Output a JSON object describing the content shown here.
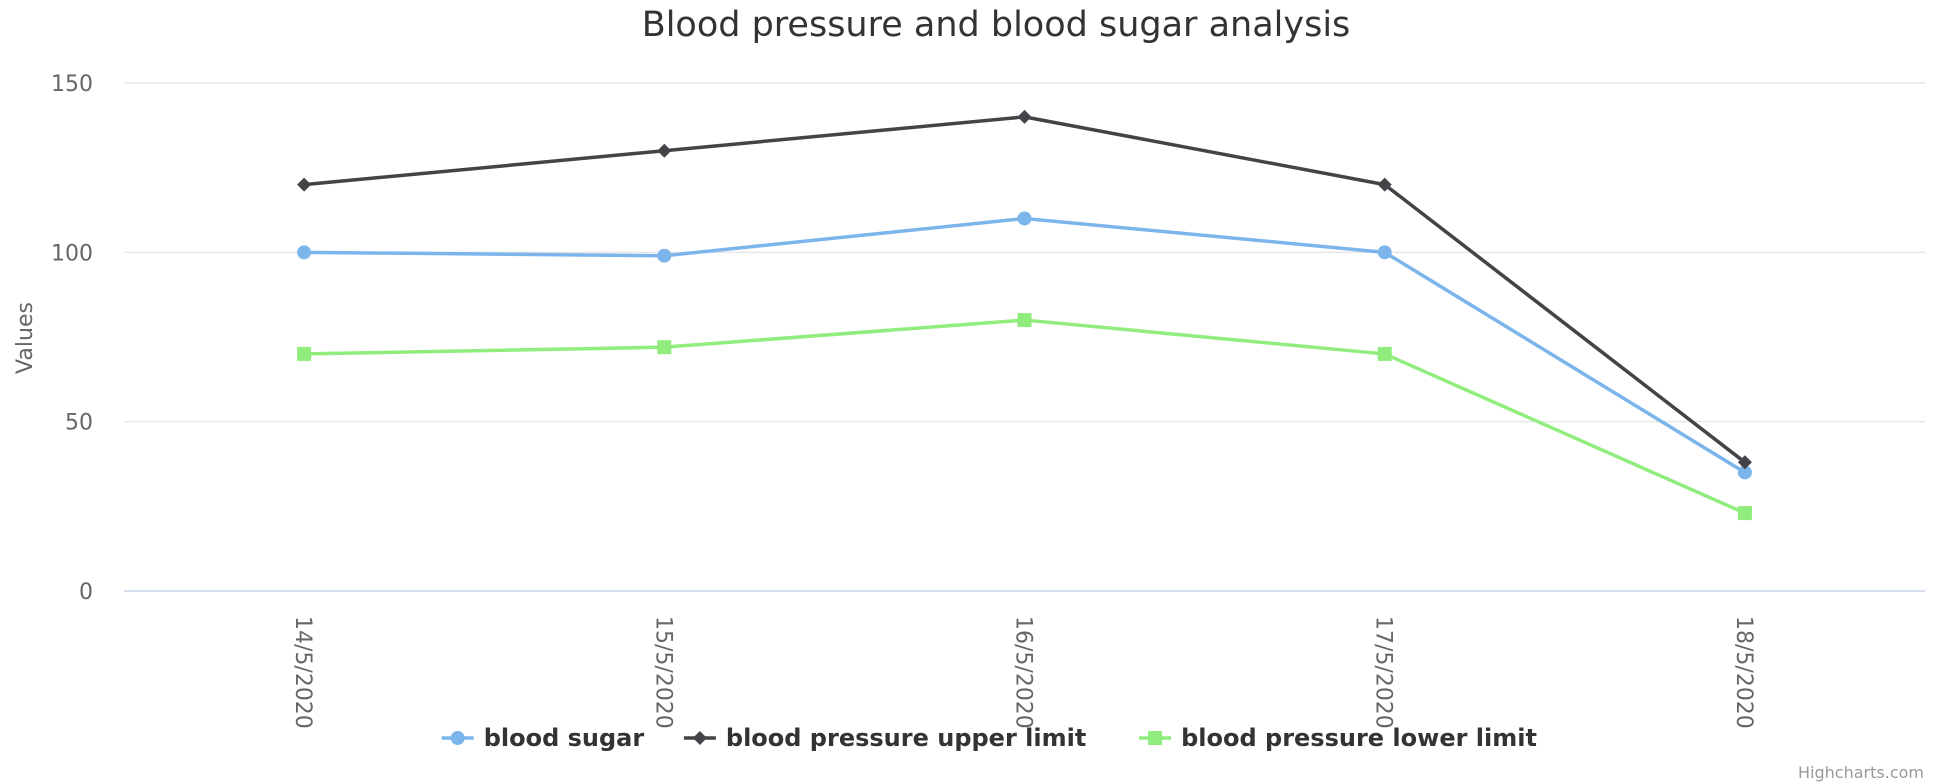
{
  "chart_data": {
    "type": "line",
    "title": "Blood pressure and blood sugar analysis",
    "ylabel": "Values",
    "xlabel": "",
    "categories": [
      "14/5/2020",
      "15/5/2020",
      "16/5/2020",
      "17/5/2020",
      "18/5/2020"
    ],
    "ylim": [
      0,
      150
    ],
    "yticks": [
      0,
      50,
      100,
      150
    ],
    "grid": true,
    "legend_position": "bottom-center",
    "series": [
      {
        "name": "blood sugar",
        "values": [
          100,
          99,
          110,
          100,
          35
        ],
        "color": "#7cb5ec",
        "marker": "circle"
      },
      {
        "name": "blood pressure upper limit",
        "values": [
          120,
          130,
          140,
          120,
          38
        ],
        "color": "#434348",
        "marker": "diamond"
      },
      {
        "name": "blood pressure lower limit",
        "values": [
          70,
          72,
          80,
          70,
          23
        ],
        "color": "#90ed7d",
        "marker": "square"
      }
    ]
  },
  "credits": "Highcharts.com"
}
